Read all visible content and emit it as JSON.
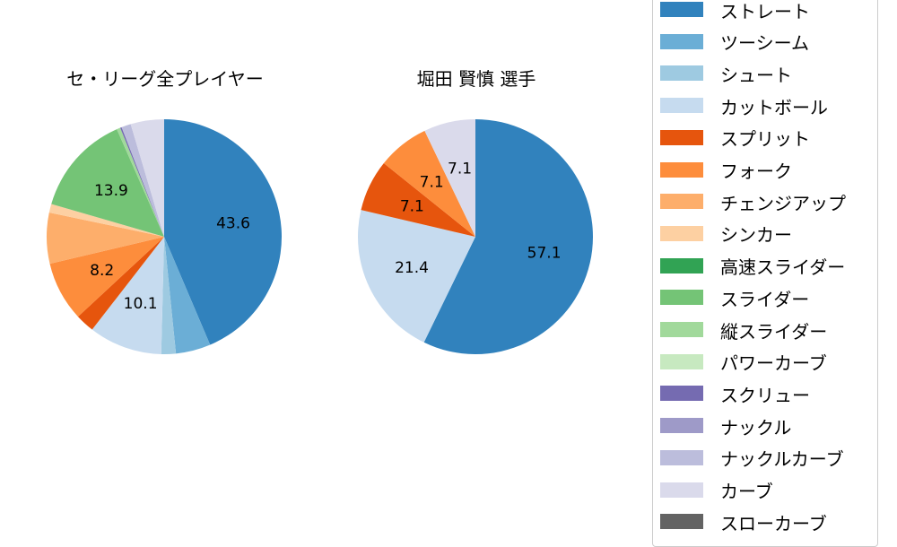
{
  "chart_data": [
    {
      "type": "pie",
      "title": "セ・リーグ全プレイヤー",
      "categories": [
        "ストレート",
        "ツーシーム",
        "シュート",
        "カットボール",
        "スプリット",
        "フォーク",
        "チェンジアップ",
        "シンカー",
        "高速スライダー",
        "スライダー",
        "縦スライダー",
        "パワーカーブ",
        "スクリュー",
        "ナックル",
        "ナックルカーブ",
        "カーブ",
        "スローカーブ"
      ],
      "values": [
        43.6,
        4.8,
        2.0,
        10.1,
        2.6,
        8.2,
        7.0,
        1.2,
        0.0,
        13.9,
        0.5,
        0.0,
        0.2,
        0.0,
        1.3,
        4.6,
        0.0
      ],
      "labels_shown": [
        "43.6",
        "10.1",
        "8.2",
        "13.9"
      ],
      "start_angle": 90,
      "direction": "clockwise"
    },
    {
      "type": "pie",
      "title": "堀田 賢慎  選手",
      "categories": [
        "ストレート",
        "カットボール",
        "スプリット",
        "フォーク",
        "カーブ"
      ],
      "values": [
        57.1,
        21.4,
        7.1,
        7.1,
        7.1
      ],
      "labels_shown": [
        "57.1",
        "21.4",
        "7.1",
        "7.1",
        "7.1"
      ],
      "start_angle": 90,
      "direction": "clockwise"
    }
  ],
  "titles": {
    "left": "セ・リーグ全プレイヤー",
    "right": "堀田 賢慎  選手"
  },
  "legend": [
    {
      "label": "ストレート",
      "color": "#3182bd"
    },
    {
      "label": "ツーシーム",
      "color": "#6baed6"
    },
    {
      "label": "シュート",
      "color": "#9ecae1"
    },
    {
      "label": "カットボール",
      "color": "#c6dbef"
    },
    {
      "label": "スプリット",
      "color": "#e6550d"
    },
    {
      "label": "フォーク",
      "color": "#fd8d3c"
    },
    {
      "label": "チェンジアップ",
      "color": "#fdae6b"
    },
    {
      "label": "シンカー",
      "color": "#fdd0a2"
    },
    {
      "label": "高速スライダー",
      "color": "#31a354"
    },
    {
      "label": "スライダー",
      "color": "#74c476"
    },
    {
      "label": "縦スライダー",
      "color": "#a1d99b"
    },
    {
      "label": "パワーカーブ",
      "color": "#c7e9c0"
    },
    {
      "label": "スクリュー",
      "color": "#756bb1"
    },
    {
      "label": "ナックル",
      "color": "#9e9ac8"
    },
    {
      "label": "ナックルカーブ",
      "color": "#bcbddc"
    },
    {
      "label": "カーブ",
      "color": "#dadaeb"
    },
    {
      "label": "スローカーブ",
      "color": "#636363"
    }
  ]
}
